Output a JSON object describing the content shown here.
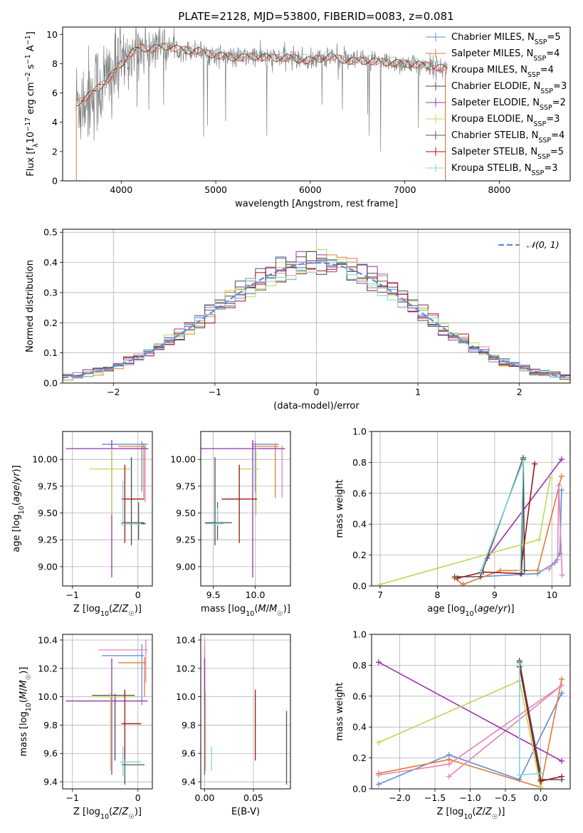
{
  "figure": {
    "title": "PLATE=2128, MJD=53800, FIBERID=0083, z=0.081"
  },
  "colors": {
    "chabrier_miles": "#5f8ed8",
    "salpeter_miles": "#e07b39",
    "kroupa_miles": "#e384b8",
    "chabrier_elodie": "#4a4a4a",
    "salpeter_elodie": "#9b2fae",
    "kroupa_elodie": "#bcd85a",
    "chabrier_stelib": "#555555",
    "salpeter_stelib": "#a01515",
    "kroupa_stelib": "#7fd6dd",
    "data_spectrum": "#808080",
    "normal_curve": "#5b8fd6",
    "grid": "#b0b0b0"
  },
  "chart_data": [
    {
      "id": "spectrum",
      "type": "line",
      "xlabel": "wavelength [Angstrom, rest frame]",
      "ylabel": "Flux [f_λ10^-17 erg cm^-2 s^-1 A^-1]",
      "xlim": [
        3380,
        8750
      ],
      "ylim": [
        0,
        10.5
      ],
      "xticks": [
        4000,
        5000,
        6000,
        7000,
        8000
      ],
      "yticks": [
        0,
        2,
        4,
        6,
        8,
        10
      ],
      "grid": false,
      "legend_position": "right",
      "legend": [
        {
          "label": "Chabrier MILES, N_SSP=5",
          "color_key": "chabrier_miles"
        },
        {
          "label": "Salpeter MILES, N_SSP=4",
          "color_key": "salpeter_miles"
        },
        {
          "label": "Kroupa MILES, N_SSP=4",
          "color_key": "kroupa_miles"
        },
        {
          "label": "Chabrier ELODIE, N_SSP=3",
          "color_key": "chabrier_elodie"
        },
        {
          "label": "Salpeter ELODIE, N_SSP=2",
          "color_key": "salpeter_elodie"
        },
        {
          "label": "Kroupa ELODIE, N_SSP=3",
          "color_key": "kroupa_elodie"
        },
        {
          "label": "Chabrier STELIB, N_SSP=4",
          "color_key": "chabrier_stelib"
        },
        {
          "label": "Salpeter STELIB, N_SSP=5",
          "color_key": "salpeter_stelib"
        },
        {
          "label": "Kroupa STELIB, N_SSP=3",
          "color_key": "kroupa_stelib"
        }
      ],
      "continuum": [
        [
          3520,
          5.3
        ],
        [
          3600,
          5.6
        ],
        [
          3700,
          6.0
        ],
        [
          3800,
          6.6
        ],
        [
          3900,
          7.2
        ],
        [
          4000,
          8.0
        ],
        [
          4100,
          8.7
        ],
        [
          4200,
          9.1
        ],
        [
          4300,
          9.0
        ],
        [
          4400,
          9.1
        ],
        [
          4500,
          9.2
        ],
        [
          4600,
          9.0
        ],
        [
          4700,
          8.9
        ],
        [
          4800,
          8.9
        ],
        [
          4900,
          8.7
        ],
        [
          5000,
          8.6
        ],
        [
          5200,
          8.4
        ],
        [
          5400,
          8.5
        ],
        [
          5600,
          8.4
        ],
        [
          5800,
          8.4
        ],
        [
          6000,
          8.2
        ],
        [
          6200,
          8.5
        ],
        [
          6400,
          8.2
        ],
        [
          6600,
          8.2
        ],
        [
          6800,
          8.1
        ],
        [
          7000,
          8.0
        ],
        [
          7200,
          7.9
        ],
        [
          7400,
          7.7
        ]
      ]
    },
    {
      "id": "residuals",
      "type": "histogram",
      "xlabel": "(data-model)/error",
      "ylabel": "Normed distribution",
      "xlim": [
        -2.5,
        2.5
      ],
      "ylim": [
        0,
        0.51
      ],
      "xticks": [
        -2,
        -1,
        0,
        1,
        2
      ],
      "yticks": [
        0.0,
        0.1,
        0.2,
        0.3,
        0.4,
        0.5
      ],
      "grid": true,
      "legend_position": "top-right",
      "legend": [
        {
          "label": "𝒩(0, 1)",
          "color_key": "normal_curve"
        }
      ],
      "bin_width": 0.1
    },
    {
      "id": "age_vs_Z",
      "type": "errorbar",
      "xlabel": "Z [log10(Z/Z☉)]",
      "ylabel": "age [log10(age/yr)]",
      "xlim": [
        -1.15,
        0.22
      ],
      "ylim": [
        8.82,
        10.26
      ],
      "xticks": [
        -1,
        0
      ],
      "yticks": [
        9.0,
        9.25,
        9.5,
        9.75,
        10.0
      ],
      "grid": true,
      "points": [
        {
          "c": "chabrier_miles",
          "x": 0.06,
          "xlo": -0.55,
          "xhi": 0.15,
          "y": 10.14,
          "ylo": 9.7,
          "yhi": 10.17
        },
        {
          "c": "salpeter_miles",
          "x": 0.09,
          "xlo": -0.3,
          "xhi": 0.12,
          "y": 10.12,
          "ylo": 9.64,
          "yhi": 10.15
        },
        {
          "c": "kroupa_miles",
          "x": 0.11,
          "xlo": -0.4,
          "xhi": 0.15,
          "y": 10.1,
          "ylo": 9.6,
          "yhi": 10.13
        },
        {
          "c": "chabrier_elodie",
          "x": -0.1,
          "xlo": -0.25,
          "xhi": 0.12,
          "y": 9.4,
          "ylo": 9.2,
          "yhi": 10.02
        },
        {
          "c": "salpeter_elodie",
          "x": -0.4,
          "xlo": -1.1,
          "xhi": 0.16,
          "y": 10.1,
          "ylo": 8.9,
          "yhi": 10.18
        },
        {
          "c": "kroupa_elodie",
          "x": -0.4,
          "xlo": -0.74,
          "xhi": -0.1,
          "y": 9.91,
          "ylo": 9.48,
          "yhi": 10.1
        },
        {
          "c": "chabrier_stelib",
          "x": 0.01,
          "xlo": -0.25,
          "xhi": 0.1,
          "y": 9.41,
          "ylo": 9.25,
          "yhi": 9.6
        },
        {
          "c": "salpeter_stelib",
          "x": -0.2,
          "xlo": -0.25,
          "xhi": 0.1,
          "y": 9.63,
          "ylo": 9.22,
          "yhi": 9.95
        },
        {
          "c": "kroupa_stelib",
          "x": -0.23,
          "xlo": -0.27,
          "xhi": 0.05,
          "y": 9.4,
          "ylo": 9.38,
          "yhi": 9.8
        }
      ]
    },
    {
      "id": "age_vs_mass",
      "type": "errorbar",
      "xlabel": "mass [log10(M/M☉)]",
      "ylabel": "",
      "xlim": [
        9.35,
        10.42
      ],
      "ylim": [
        8.82,
        10.26
      ],
      "xticks": [
        9.5,
        10.0
      ],
      "yticks": [
        9.0,
        9.25,
        9.5,
        9.75,
        10.0
      ],
      "grid": true,
      "points": [
        {
          "c": "chabrier_miles",
          "x": 10.0,
          "xlo": 9.96,
          "xhi": 10.28,
          "y": 10.14,
          "ylo": 9.7,
          "yhi": 10.17
        },
        {
          "c": "salpeter_miles",
          "x": 10.24,
          "xlo": 9.96,
          "xhi": 10.28,
          "y": 10.12,
          "ylo": 9.64,
          "yhi": 10.15
        },
        {
          "c": "kroupa_miles",
          "x": 10.32,
          "xlo": 10.06,
          "xhi": 10.36,
          "y": 10.1,
          "ylo": 9.64,
          "yhi": 10.13
        },
        {
          "c": "chabrier_elodie",
          "x": 9.52,
          "xlo": 9.4,
          "xhi": 9.72,
          "y": 9.41,
          "ylo": 9.2,
          "yhi": 10.02
        },
        {
          "c": "salpeter_elodie",
          "x": 9.97,
          "xlo": 9.3,
          "xhi": 10.35,
          "y": 10.1,
          "ylo": 8.9,
          "yhi": 10.18
        },
        {
          "c": "kroupa_elodie",
          "x": 10.01,
          "xlo": 9.8,
          "xhi": 10.05,
          "y": 9.91,
          "ylo": 9.48,
          "yhi": 10.1
        },
        {
          "c": "chabrier_stelib",
          "x": 9.55,
          "xlo": 9.4,
          "xhi": 9.72,
          "y": 9.41,
          "ylo": 9.25,
          "yhi": 9.6
        },
        {
          "c": "salpeter_stelib",
          "x": 9.81,
          "xlo": 9.6,
          "xhi": 10.02,
          "y": 9.63,
          "ylo": 9.22,
          "yhi": 9.95
        },
        {
          "c": "kroupa_stelib",
          "x": 9.55,
          "xlo": 9.4,
          "xhi": 9.62,
          "y": 9.4,
          "ylo": 9.38,
          "yhi": 9.55
        }
      ]
    },
    {
      "id": "mass_weight_vs_age",
      "type": "line",
      "xlabel": "age [log10(age/yr)]",
      "ylabel": "mass weight",
      "xlim": [
        6.85,
        10.32
      ],
      "ylim": [
        0,
        1.0
      ],
      "xticks": [
        7,
        8,
        9,
        10
      ],
      "yticks": [
        0.0,
        0.2,
        0.4,
        0.6,
        0.8,
        1.0
      ],
      "grid": true,
      "series": [
        {
          "c": "chabrier_miles",
          "x": [
            8.75,
            9.75,
            10.05,
            10.14,
            10.17
          ],
          "y": [
            0.06,
            0.08,
            0.15,
            0.21,
            0.62
          ]
        },
        {
          "c": "salpeter_miles",
          "x": [
            8.3,
            8.45,
            9.1,
            9.75,
            10.17
          ],
          "y": [
            0.05,
            0.01,
            0.1,
            0.1,
            0.71
          ]
        },
        {
          "c": "kroupa_miles",
          "x": [
            9.95,
            10.1,
            10.12,
            10.18
          ],
          "y": [
            0.11,
            0.17,
            0.65,
            0.07
          ]
        },
        {
          "c": "chabrier_elodie",
          "x": [
            9.47,
            9.5,
            9.52
          ],
          "y": [
            0.08,
            0.82,
            0.1
          ]
        },
        {
          "c": "salpeter_elodie",
          "x": [
            8.87,
            10.17
          ],
          "y": [
            0.18,
            0.82
          ]
        },
        {
          "c": "kroupa_elodie",
          "x": [
            7.0,
            9.78,
            9.97
          ],
          "y": [
            0.01,
            0.3,
            0.7
          ]
        },
        {
          "c": "chabrier_stelib",
          "x": [
            8.3,
            8.75,
            9.5
          ],
          "y": [
            0.06,
            0.06,
            0.83
          ]
        },
        {
          "c": "salpeter_stelib",
          "x": [
            8.35,
            8.8,
            9.45,
            9.7
          ],
          "y": [
            0.05,
            0.09,
            0.08,
            0.79
          ]
        },
        {
          "c": "kroupa_stelib",
          "x": [
            8.75,
            9.5,
            9.45
          ],
          "y": [
            0.09,
            0.81,
            0.1
          ]
        }
      ]
    },
    {
      "id": "mass_vs_Z",
      "type": "errorbar",
      "xlabel": "Z [log10(Z/Z☉)]",
      "ylabel": "mass [log10(M/M☉)]",
      "xlim": [
        -1.15,
        0.22
      ],
      "ylim": [
        9.35,
        10.44
      ],
      "xticks": [
        -1,
        0
      ],
      "yticks": [
        9.4,
        9.6,
        9.8,
        10.0,
        10.2,
        10.4
      ],
      "grid": true,
      "points": [
        {
          "c": "chabrier_miles",
          "x": 0.06,
          "xlo": -0.55,
          "xhi": 0.1,
          "y": 10.29,
          "ylo": 9.94,
          "yhi": 10.37
        },
        {
          "c": "salpeter_miles",
          "x": 0.1,
          "xlo": -0.3,
          "xhi": 0.12,
          "y": 10.24,
          "ylo": 10.0,
          "yhi": 10.28
        },
        {
          "c": "kroupa_miles",
          "x": 0.12,
          "xlo": -0.6,
          "xhi": 0.15,
          "y": 10.33,
          "ylo": 10.1,
          "yhi": 10.4
        },
        {
          "c": "chabrier_elodie",
          "x": -0.35,
          "xlo": -0.7,
          "xhi": -0.05,
          "y": 10.01,
          "ylo": 9.55,
          "yhi": 10.02
        },
        {
          "c": "salpeter_elodie",
          "x": -0.4,
          "xlo": -1.1,
          "xhi": 0.15,
          "y": 9.97,
          "ylo": 9.45,
          "yhi": 10.27
        },
        {
          "c": "kroupa_elodie",
          "x": -0.42,
          "xlo": -0.75,
          "xhi": -0.05,
          "y": 10.0,
          "ylo": 9.48,
          "yhi": 10.03
        },
        {
          "c": "chabrier_stelib",
          "x": -0.2,
          "xlo": -0.25,
          "xhi": 0.1,
          "y": 9.52,
          "ylo": 9.38,
          "yhi": 9.65
        },
        {
          "c": "salpeter_stelib",
          "x": -0.2,
          "xlo": -0.25,
          "xhi": 0.05,
          "y": 9.81,
          "ylo": 9.56,
          "yhi": 10.05
        },
        {
          "c": "kroupa_stelib",
          "x": -0.23,
          "xlo": -0.27,
          "xhi": 0.05,
          "y": 9.54,
          "ylo": 9.44,
          "yhi": 9.65
        }
      ]
    },
    {
      "id": "mass_vs_ebv",
      "type": "errorbar",
      "xlabel": "E(B-V)",
      "ylabel": "",
      "xlim": [
        -0.004,
        0.088
      ],
      "ylim": [
        9.35,
        10.44
      ],
      "xticks": [
        0.0,
        0.05
      ],
      "yticks": [
        9.4,
        9.6,
        9.8,
        10.0,
        10.2,
        10.4
      ],
      "grid": true,
      "points": [
        {
          "c": "chabrier_miles",
          "x": 0.0,
          "ylo": 9.94,
          "yhi": 10.35
        },
        {
          "c": "salpeter_miles",
          "x": 0.0,
          "ylo": 10.0,
          "yhi": 10.28
        },
        {
          "c": "kroupa_miles",
          "x": 0.0,
          "ylo": 10.1,
          "yhi": 10.4
        },
        {
          "c": "salpeter_elodie",
          "x": 0.0,
          "ylo": 9.45,
          "yhi": 10.27
        },
        {
          "c": "kroupa_elodie",
          "x": 0.001,
          "ylo": 9.48,
          "yhi": 10.03
        },
        {
          "c": "chabrier_stelib",
          "x": 0.084,
          "ylo": 9.38,
          "yhi": 9.9
        },
        {
          "c": "salpeter_stelib",
          "x": 0.052,
          "ylo": 9.55,
          "yhi": 10.05
        },
        {
          "c": "kroupa_stelib",
          "x": 0.007,
          "ylo": 9.48,
          "yhi": 9.65
        }
      ]
    },
    {
      "id": "mass_weight_vs_Z",
      "type": "line",
      "xlabel": "Z [log10(Z/Z☉)]",
      "ylabel": "mass weight",
      "xlim": [
        -2.4,
        0.42
      ],
      "ylim": [
        0,
        1.0
      ],
      "xticks": [
        -2.0,
        -1.5,
        -1.0,
        -0.5,
        0.0
      ],
      "yticks": [
        0.0,
        0.2,
        0.4,
        0.6,
        0.8,
        1.0
      ],
      "grid": true,
      "series": [
        {
          "c": "chabrier_miles",
          "x": [
            -2.3,
            -1.3,
            -0.3,
            0.3
          ],
          "y": [
            0.03,
            0.22,
            0.06,
            0.62
          ]
        },
        {
          "c": "salpeter_miles",
          "x": [
            -2.3,
            -1.3,
            0.0,
            0.3
          ],
          "y": [
            0.1,
            0.19,
            0.01,
            0.71
          ]
        },
        {
          "c": "kroupa_miles",
          "x": [
            -2.3,
            -1.3,
            0.3,
            -1.3
          ],
          "y": [
            0.09,
            0.16,
            0.67,
            0.08
          ]
        },
        {
          "c": "chabrier_elodie",
          "x": [
            -0.3,
            0.0
          ],
          "y": [
            0.82,
            0.1
          ]
        },
        {
          "c": "salpeter_elodie",
          "x": [
            -2.3,
            0.3
          ],
          "y": [
            0.82,
            0.18
          ]
        },
        {
          "c": "kroupa_elodie",
          "x": [
            -2.3,
            -0.3,
            0.0
          ],
          "y": [
            0.3,
            0.7,
            0.01
          ]
        },
        {
          "c": "chabrier_stelib",
          "x": [
            -0.3,
            0.0,
            0.3
          ],
          "y": [
            0.83,
            0.06,
            0.06
          ]
        },
        {
          "c": "salpeter_stelib",
          "x": [
            -0.3,
            0.0,
            0.3
          ],
          "y": [
            0.79,
            0.05,
            0.08
          ]
        },
        {
          "c": "kroupa_stelib",
          "x": [
            -0.3,
            -0.3,
            0.0
          ],
          "y": [
            0.81,
            0.09,
            0.1
          ]
        }
      ]
    }
  ]
}
